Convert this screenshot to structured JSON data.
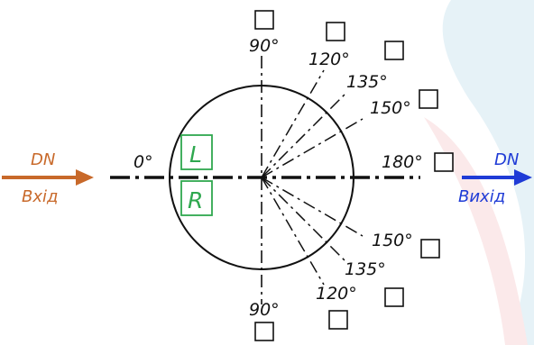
{
  "flow": {
    "inlet": {
      "top": "DN",
      "bottom": "Вхід",
      "color": "#c8692a"
    },
    "outlet": {
      "top": "DN",
      "bottom": "Вихід",
      "color": "#1f3bd6"
    }
  },
  "sides": {
    "left": "L",
    "right": "R",
    "color": "#2fa84f"
  },
  "angles": {
    "a0": "0°",
    "a90_top": "90°",
    "a120_top": "120°",
    "a135_top": "135°",
    "a150_top": "150°",
    "a180": "180°",
    "a150_bottom": "150°",
    "a135_bottom": "135°",
    "a120_bottom": "120°",
    "a90_bottom": "90°"
  },
  "checkboxes": [
    {
      "id": "90-top",
      "checked": false
    },
    {
      "id": "120-top",
      "checked": false
    },
    {
      "id": "135-top",
      "checked": false
    },
    {
      "id": "150-top",
      "checked": false
    },
    {
      "id": "180",
      "checked": false
    },
    {
      "id": "150-bottom",
      "checked": false
    },
    {
      "id": "135-bottom",
      "checked": false
    },
    {
      "id": "120-bottom",
      "checked": false
    },
    {
      "id": "90-bottom",
      "checked": false
    }
  ]
}
